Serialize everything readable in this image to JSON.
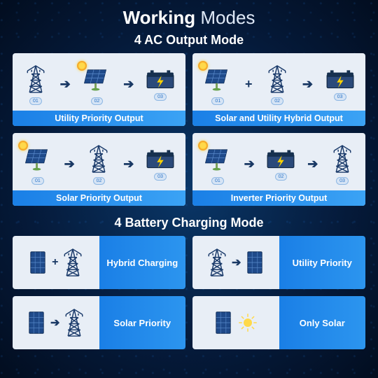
{
  "title_bold": "Working",
  "title_thin": "Modes",
  "section_ac": "4 AC Output Mode",
  "section_batt": "4 Battery Charging Mode",
  "colors": {
    "bg_dark": "#051a3a",
    "card_bg": "#e8eef6",
    "label_grad_start": "#1a7fe6",
    "label_grad_end": "#3ba3f5",
    "text_white": "#ffffff",
    "arrow": "#193864",
    "tower": "#1a3a6a",
    "panel": "#1f4a8a",
    "battery_body": "#2b4a7a",
    "bolt": "#ffd400",
    "sun": "#ffd94a",
    "badge_bg": "#d6e4f5",
    "badge_border": "#8fb8e4",
    "badge_text": "#2b74c7"
  },
  "badges": {
    "b1": "01",
    "b2": "02",
    "b3": "03"
  },
  "ac_modes": [
    {
      "label": "Utility Priority Output",
      "items": [
        "tower",
        "panel",
        "battery"
      ],
      "connectors": [
        "arrow",
        "arrow"
      ],
      "sun_at": 1
    },
    {
      "label": "Solar and Utility Hybrid Output",
      "items": [
        "panel",
        "tower",
        "battery"
      ],
      "connectors": [
        "plus",
        "arrow"
      ],
      "sun_at": 0
    },
    {
      "label": "Solar Priority Output",
      "items": [
        "panel",
        "tower",
        "battery"
      ],
      "connectors": [
        "arrow",
        "arrow"
      ],
      "sun_at": 0
    },
    {
      "label": "Inverter Priority Output",
      "items": [
        "panel",
        "battery",
        "tower"
      ],
      "connectors": [
        "arrow",
        "arrow"
      ],
      "sun_at": 0
    }
  ],
  "batt_modes": [
    {
      "label": "Hybrid Charging",
      "left_items": [
        "panel2",
        "plus",
        "tower"
      ]
    },
    {
      "label": "Utility Priority",
      "left_items": [
        "tower",
        "arrow",
        "panel2"
      ]
    },
    {
      "label": "Solar Priority",
      "left_items": [
        "panel2",
        "arrow",
        "tower"
      ]
    },
    {
      "label": "Only Solar",
      "left_items": [
        "panel2",
        "sunbig"
      ]
    }
  ]
}
